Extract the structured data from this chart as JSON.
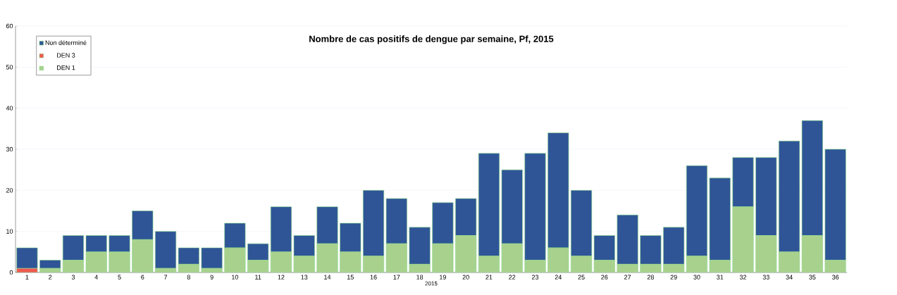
{
  "chart_data": {
    "type": "bar",
    "title": "Nombre de cas positifs de dengue par semaine, Pf, 2015",
    "xlabel": "2015",
    "categories": [
      "1",
      "2",
      "3",
      "4",
      "5",
      "6",
      "7",
      "8",
      "9",
      "10",
      "11",
      "12",
      "13",
      "14",
      "15",
      "16",
      "17",
      "18",
      "19",
      "20",
      "21",
      "22",
      "23",
      "24",
      "25",
      "26",
      "27",
      "28",
      "29",
      "30",
      "31",
      "32",
      "33",
      "34",
      "35",
      "36"
    ],
    "stacked": true,
    "series": [
      {
        "name": "DEN 1",
        "color": "#a9d18e",
        "values": [
          0,
          1,
          3,
          5,
          5,
          8,
          1,
          2,
          1,
          6,
          3,
          5,
          4,
          7,
          5,
          4,
          7,
          2,
          7,
          9,
          4,
          7,
          3,
          6,
          4,
          3,
          2,
          2,
          2,
          4,
          3,
          16,
          9,
          5,
          9,
          3
        ]
      },
      {
        "name": "DEN 3",
        "color": "#f0584f",
        "values": [
          1,
          0,
          0,
          0,
          0,
          0,
          0,
          0,
          0,
          0,
          0,
          0,
          0,
          0,
          0,
          0,
          0,
          0,
          0,
          0,
          0,
          0,
          0,
          0,
          0,
          0,
          0,
          0,
          0,
          0,
          0,
          0,
          0,
          0,
          0,
          0
        ]
      },
      {
        "name": "Non déterminé",
        "color": "#2f5597",
        "values": [
          5,
          2,
          6,
          4,
          4,
          7,
          9,
          4,
          5,
          6,
          4,
          11,
          5,
          9,
          7,
          16,
          11,
          9,
          10,
          9,
          25,
          18,
          26,
          28,
          16,
          6,
          12,
          7,
          9,
          22,
          20,
          12,
          19,
          27,
          28,
          27
        ]
      }
    ],
    "ylim": [
      0,
      60
    ],
    "yticks": [
      0,
      10,
      20,
      30,
      40,
      50,
      60
    ],
    "grid": "y",
    "legend": "top left"
  }
}
